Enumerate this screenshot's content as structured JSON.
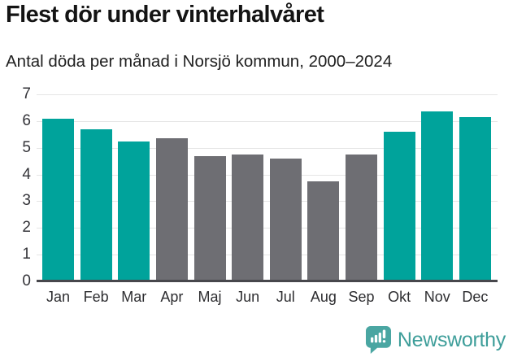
{
  "header": {
    "title": "Flest dör under vinterhalvåret",
    "subtitle": "Antal döda per månad i Norsjö kommun, 2000–2024"
  },
  "chart_data": {
    "type": "bar",
    "title": "Flest dör under vinterhalvåret",
    "subtitle": "Antal döda per månad i Norsjö kommun, 2000–2024",
    "categories": [
      "Jan",
      "Feb",
      "Mar",
      "Apr",
      "Maj",
      "Jun",
      "Jul",
      "Aug",
      "Sep",
      "Okt",
      "Nov",
      "Dec"
    ],
    "values": [
      6.1,
      5.7,
      5.25,
      5.35,
      4.7,
      4.75,
      4.6,
      3.75,
      4.75,
      5.6,
      6.35,
      6.15
    ],
    "bar_colors": [
      "#00a39b",
      "#00a39b",
      "#00a39b",
      "#6e6e73",
      "#6e6e73",
      "#6e6e73",
      "#6e6e73",
      "#6e6e73",
      "#6e6e73",
      "#00a39b",
      "#00a39b",
      "#00a39b"
    ],
    "highlight_color": "#00a39b",
    "base_color": "#6e6e73",
    "xlabel": "",
    "ylabel": "",
    "ylim": [
      0,
      7
    ],
    "yticks": [
      0,
      1,
      2,
      3,
      4,
      5,
      6,
      7
    ],
    "grid": true,
    "legend": false
  },
  "footer": {
    "brand": "Newsworthy",
    "brand_text_color": "#3e9e9a",
    "brand_icon_color": "#4aa6a2"
  }
}
